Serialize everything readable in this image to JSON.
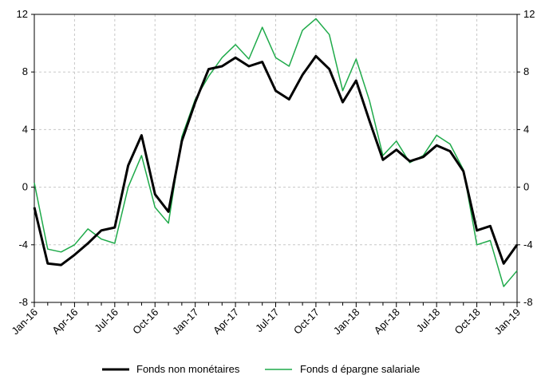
{
  "chart_data": {
    "type": "line",
    "title": "",
    "xlabel": "",
    "ylabel": "",
    "ylim": [
      -8,
      12
    ],
    "yticks": [
      12,
      8,
      4,
      0,
      -4,
      -8
    ],
    "y_tick_labels": [
      "12",
      "8",
      "4",
      "0",
      "-4",
      "-8"
    ],
    "grid": true,
    "legend_position": "bottom",
    "x": [
      "Jan-16",
      "Feb-16",
      "Mar-16",
      "Apr-16",
      "May-16",
      "Jun-16",
      "Jul-16",
      "Aug-16",
      "Sep-16",
      "Oct-16",
      "Nov-16",
      "Dec-16",
      "Jan-17",
      "Feb-17",
      "Mar-17",
      "Apr-17",
      "May-17",
      "Jun-17",
      "Jul-17",
      "Aug-17",
      "Sep-17",
      "Oct-17",
      "Nov-17",
      "Dec-17",
      "Jan-18",
      "Feb-18",
      "Mar-18",
      "Apr-18",
      "May-18",
      "Jun-18",
      "Jul-18",
      "Aug-18",
      "Sep-18",
      "Oct-18",
      "Nov-18",
      "Dec-18",
      "Jan-19"
    ],
    "x_tick_labels": [
      "Jan-16",
      "Apr-16",
      "Jul-16",
      "Oct-16",
      "Jan-17",
      "Apr-17",
      "Jul-17",
      "Oct-17",
      "Jan-18",
      "Apr-18",
      "Jul-18",
      "Oct-18",
      "Jan-19"
    ],
    "series": [
      {
        "name": "Fonds non monétaires",
        "color": "#000000",
        "values": [
          -1.4,
          -5.3,
          -5.4,
          -4.7,
          -3.9,
          -3.0,
          -2.8,
          1.5,
          3.6,
          -0.5,
          -1.7,
          3.2,
          5.9,
          8.2,
          8.4,
          9.0,
          8.4,
          8.7,
          6.7,
          6.1,
          7.8,
          9.1,
          8.2,
          5.9,
          7.4,
          4.6,
          1.9,
          2.6,
          1.8,
          2.1,
          2.9,
          2.5,
          1.1,
          -3.0,
          -2.7,
          -5.3,
          -4.0
        ]
      },
      {
        "name": "Fonds d épargne salariale",
        "color": "#1faa4a",
        "values": [
          0.3,
          -4.3,
          -4.5,
          -4.0,
          -2.9,
          -3.6,
          -3.9,
          0.0,
          2.2,
          -1.4,
          -2.5,
          3.5,
          6.1,
          7.7,
          9.0,
          9.9,
          8.9,
          11.1,
          9.0,
          8.4,
          10.9,
          11.7,
          10.6,
          6.7,
          8.9,
          6.0,
          2.2,
          3.2,
          1.7,
          2.2,
          3.6,
          3.0,
          1.2,
          -4.0,
          -3.7,
          -6.9,
          -5.8
        ]
      }
    ]
  }
}
